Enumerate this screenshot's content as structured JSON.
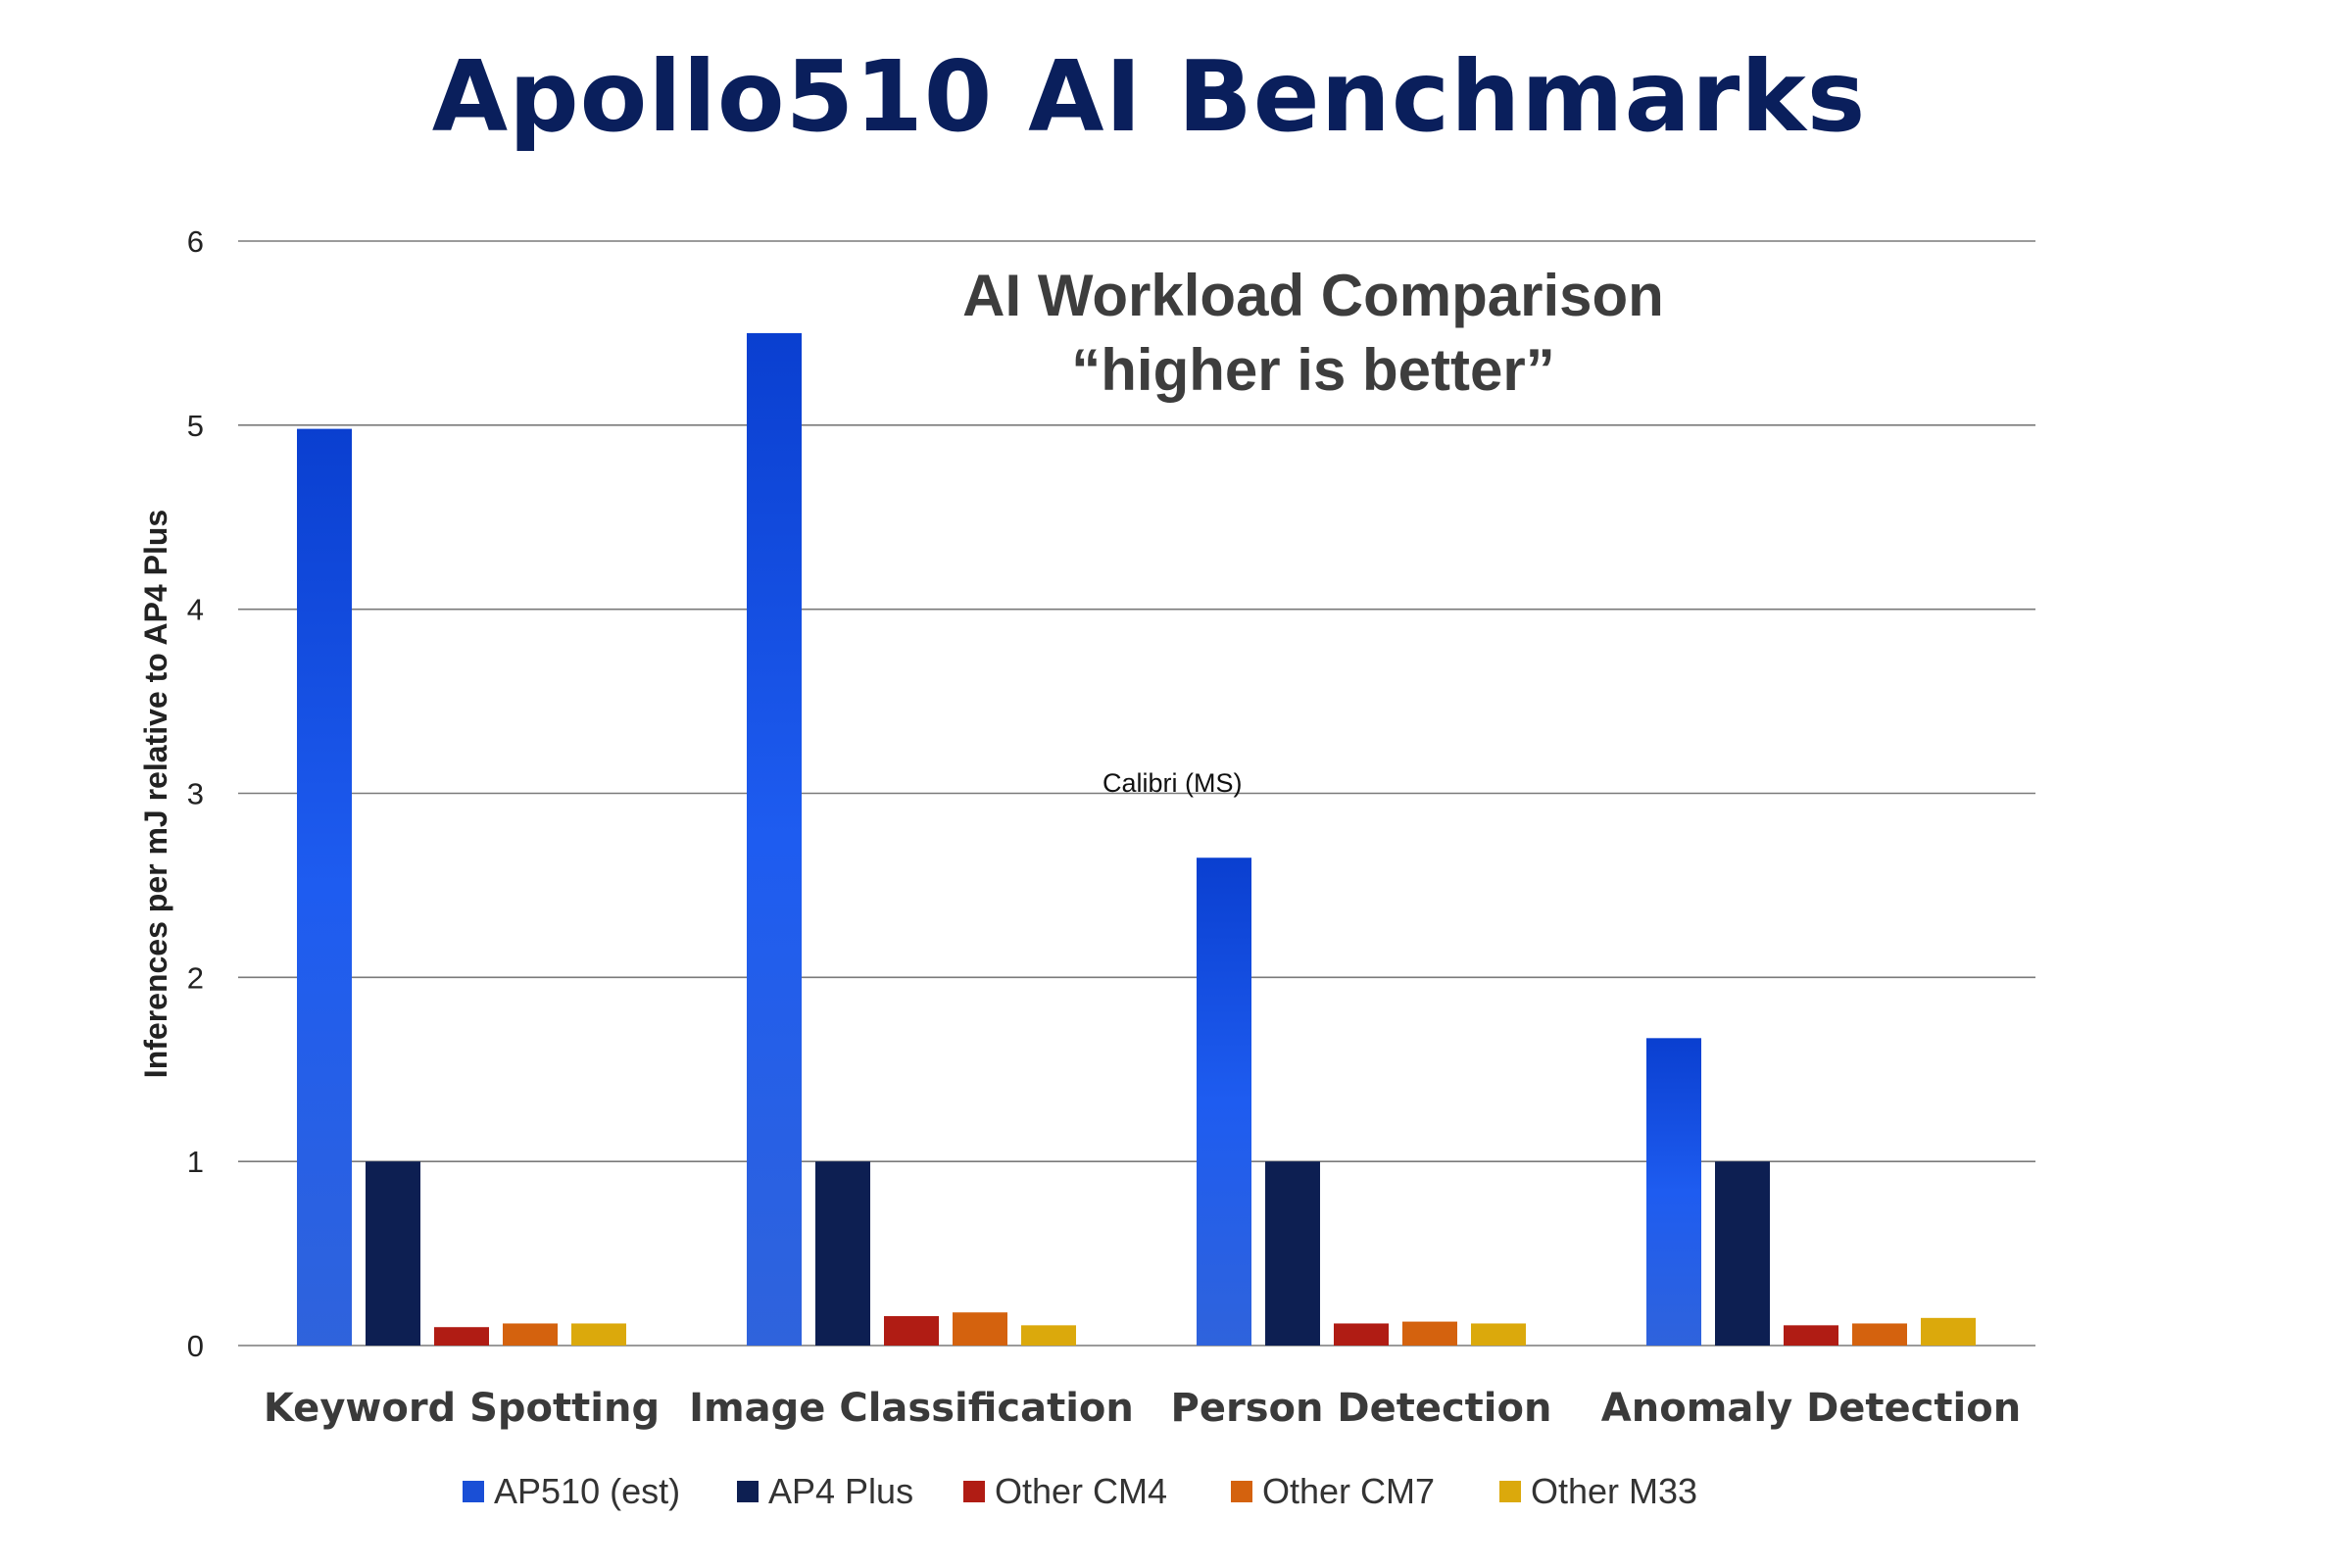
{
  "title": "Apollo510 AI Benchmarks",
  "chart_data": {
    "type": "bar",
    "title": "AI Workload Comparison",
    "subtitle": "“higher is better”",
    "ylabel": "Inferences per mJ relative to AP4 Plus",
    "xlabel": "",
    "ylim": [
      0,
      6
    ],
    "yticks": [
      "0",
      "1",
      "2",
      "3",
      "4",
      "5",
      "6"
    ],
    "grid": true,
    "legend_position": "bottom",
    "annotation": "Calibri (MS)",
    "categories": [
      "Keyword Spotting",
      "Image Classification",
      "Person Detection",
      "Anomaly Detection"
    ],
    "series": [
      {
        "name": "AP510 (est)",
        "color": "#1a4fd6",
        "values": [
          4.98,
          5.5,
          2.65,
          1.67
        ]
      },
      {
        "name": "AP4 Plus",
        "color": "#0d1f52",
        "values": [
          1.0,
          1.0,
          1.0,
          1.0
        ]
      },
      {
        "name": "Other CM4",
        "color": "#b01c14",
        "values": [
          0.1,
          0.16,
          0.12,
          0.11
        ]
      },
      {
        "name": "Other CM7",
        "color": "#d4620e",
        "values": [
          0.12,
          0.18,
          0.13,
          0.12
        ]
      },
      {
        "name": "Other M33",
        "color": "#dba90c",
        "values": [
          0.12,
          0.11,
          0.12,
          0.15
        ]
      }
    ]
  }
}
